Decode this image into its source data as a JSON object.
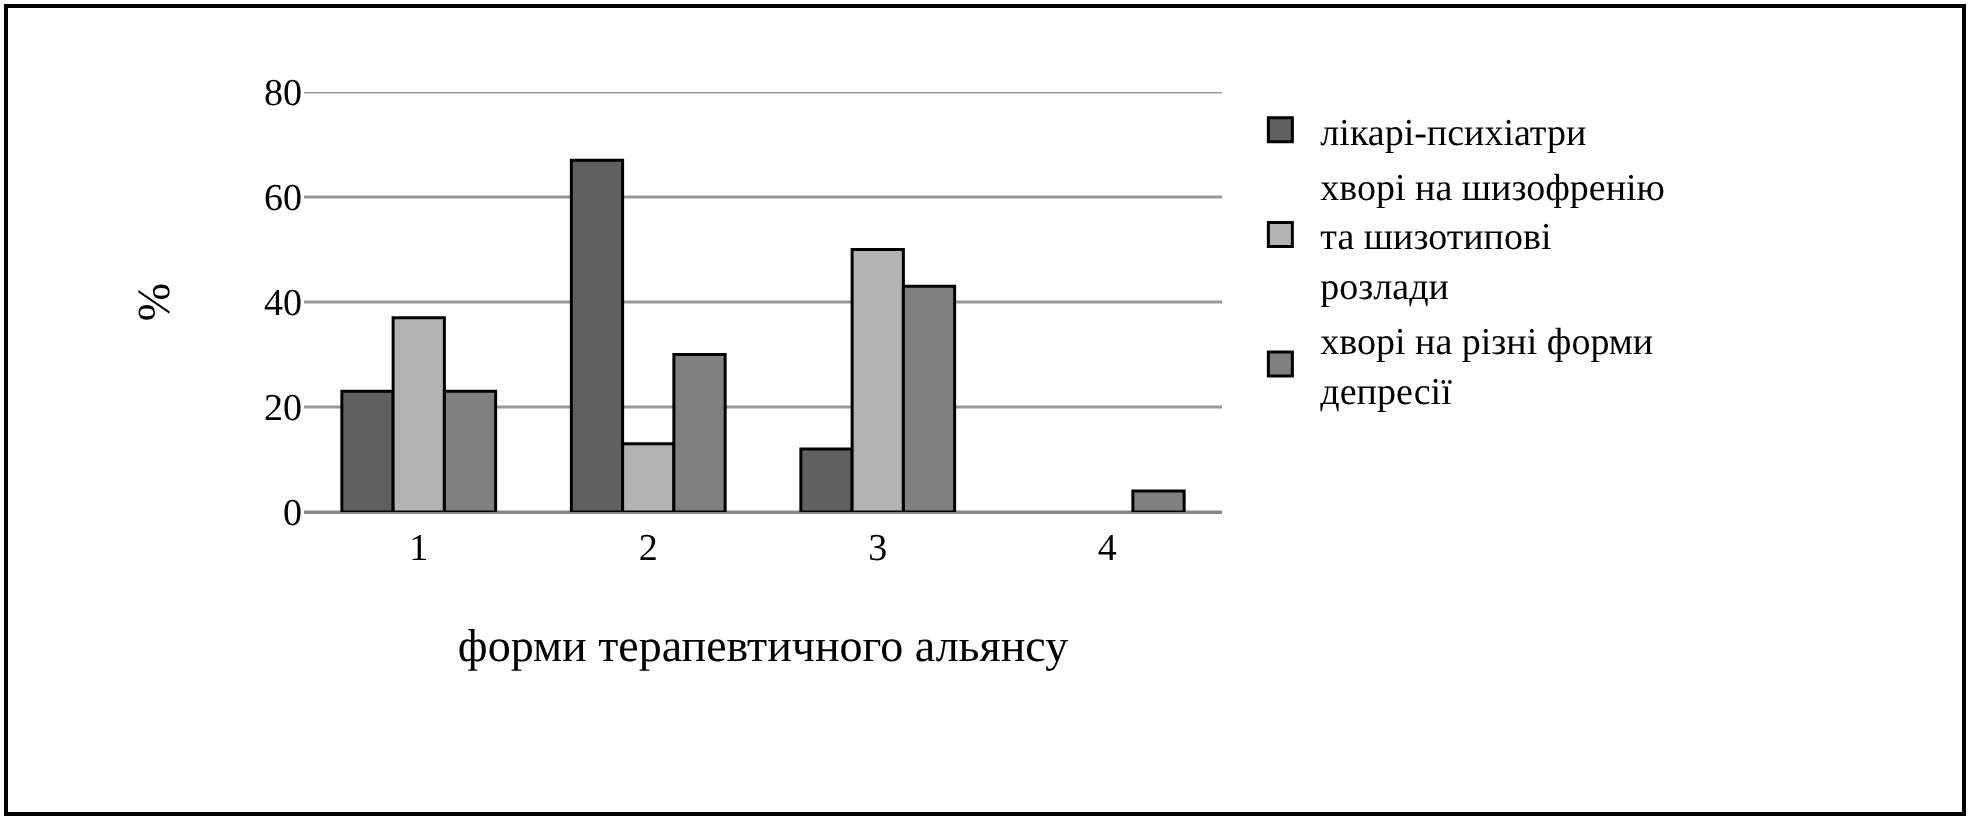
{
  "chart_data": {
    "type": "bar",
    "categories": [
      "1",
      "2",
      "3",
      "4"
    ],
    "xlabel": "форми терапевтичного альянсу",
    "ylabel": "%",
    "series": [
      {
        "name": "лікарі-психіатри",
        "color": "#606060",
        "values": [
          23,
          67,
          12,
          0
        ]
      },
      {
        "name": "хворі на шизофренію та шизотипові розлади",
        "color": "#b3b3b3",
        "values": [
          37,
          13,
          50,
          0
        ]
      },
      {
        "name": "хворі на різні форми депресії",
        "color": "#808080",
        "values": [
          23,
          30,
          43,
          4
        ]
      }
    ],
    "ylim": [
      0,
      80
    ],
    "yticks": [
      0,
      20,
      40,
      60,
      80
    ],
    "grid": "y",
    "legend": "right"
  }
}
